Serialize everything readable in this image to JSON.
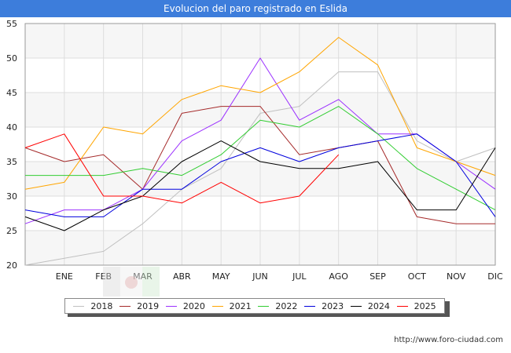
{
  "title": "Evolucion del paro registrado en Eslida",
  "footer_url": "http://www.foro-ciudad.com",
  "chart_data": {
    "type": "line",
    "x": [
      "",
      "ENE",
      "FEB",
      "MAR",
      "ABR",
      "MAY",
      "JUN",
      "JUL",
      "AGO",
      "SEP",
      "OCT",
      "NOV",
      "DIC"
    ],
    "ylim": [
      20,
      55
    ],
    "yticks": [
      20,
      25,
      30,
      35,
      40,
      45,
      50,
      55
    ],
    "grid": true,
    "legend_position": "bottom",
    "series": [
      {
        "name": "2018",
        "color": "#c0c0c0",
        "values": [
          20,
          21,
          22,
          26,
          31,
          34,
          42,
          43,
          48,
          48,
          38,
          35,
          37
        ]
      },
      {
        "name": "2019",
        "color": "#a52a2a",
        "values": [
          37,
          35,
          36,
          31,
          42,
          43,
          43,
          36,
          37,
          38,
          27,
          26,
          26
        ]
      },
      {
        "name": "2020",
        "color": "#9b30ff",
        "values": [
          26,
          28,
          28,
          31,
          38,
          41,
          50,
          41,
          44,
          39,
          39,
          35,
          31
        ]
      },
      {
        "name": "2021",
        "color": "#ffa500",
        "values": [
          31,
          32,
          40,
          39,
          44,
          46,
          45,
          48,
          53,
          49,
          37,
          35,
          33
        ]
      },
      {
        "name": "2022",
        "color": "#32cd32",
        "values": [
          33,
          33,
          33,
          34,
          33,
          36,
          41,
          40,
          43,
          39,
          34,
          31,
          28
        ]
      },
      {
        "name": "2023",
        "color": "#0000dd",
        "values": [
          28,
          27,
          27,
          31,
          31,
          35,
          37,
          35,
          37,
          38,
          39,
          35,
          27
        ]
      },
      {
        "name": "2024",
        "color": "#000000",
        "values": [
          27,
          25,
          28,
          30,
          35,
          38,
          35,
          34,
          34,
          35,
          28,
          28,
          37
        ]
      },
      {
        "name": "2025",
        "color": "#ff0000",
        "values": [
          37,
          39,
          30,
          30,
          29,
          32,
          29,
          30,
          36,
          null,
          null,
          null,
          null
        ]
      }
    ]
  }
}
